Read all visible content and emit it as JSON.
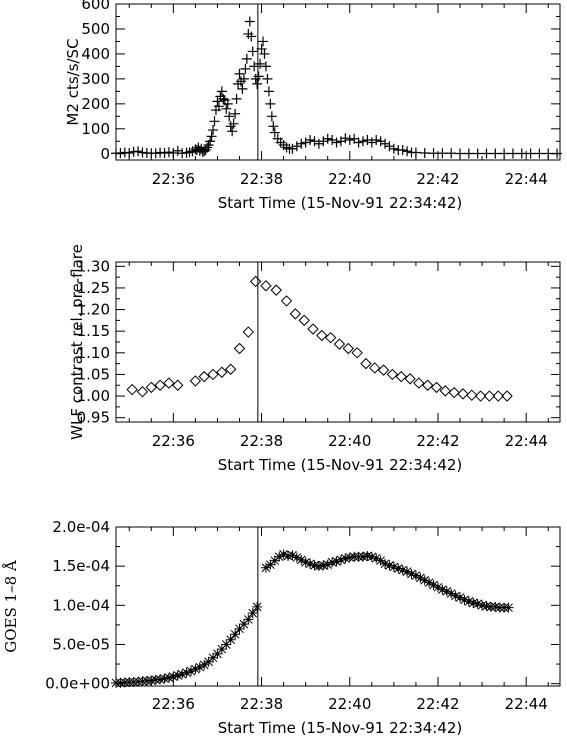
{
  "chart_data": [
    {
      "type": "scatter",
      "marker": "plus",
      "xlabel": "Start Time (15-Nov-91 22:34:42)",
      "ylabel": "M2 cts/s/SC",
      "xlim": [
        0,
        604
      ],
      "ylim": [
        -25,
        600
      ],
      "xticks": [
        {
          "t": 78,
          "label": "22:36"
        },
        {
          "t": 198,
          "label": "22:38"
        },
        {
          "t": 318,
          "label": "22:40"
        },
        {
          "t": 438,
          "label": "22:42"
        },
        {
          "t": 558,
          "label": "22:44"
        }
      ],
      "yticks": [
        {
          "v": 0,
          "label": "0"
        },
        {
          "v": 100,
          "label": "100"
        },
        {
          "v": 200,
          "label": "200"
        },
        {
          "v": 300,
          "label": "300"
        },
        {
          "v": 400,
          "label": "400"
        },
        {
          "v": 500,
          "label": "500"
        },
        {
          "v": 600,
          "label": "600"
        }
      ],
      "vline_t": 193,
      "series": [
        {
          "t": [
            0,
            6,
            12,
            18,
            24,
            30,
            36,
            42,
            48,
            54,
            60,
            66,
            72,
            78,
            84,
            90,
            96,
            100,
            104,
            108,
            110,
            112,
            114,
            116,
            118,
            120,
            122,
            124,
            126,
            128,
            130,
            132,
            134,
            136,
            138,
            140,
            142,
            144,
            146,
            148,
            150,
            152,
            154,
            156,
            158,
            160,
            162,
            164,
            166,
            168,
            170,
            172,
            174,
            176,
            178,
            180,
            182,
            184,
            186,
            188,
            190,
            192,
            194,
            196,
            198,
            200,
            202,
            204,
            206,
            208,
            210,
            212,
            214,
            216,
            220,
            224,
            228,
            232,
            236,
            240,
            246,
            252,
            258,
            264,
            270,
            276,
            282,
            288,
            294,
            300,
            306,
            312,
            318,
            324,
            330,
            336,
            342,
            348,
            354,
            360,
            366,
            372,
            378,
            384,
            390,
            396,
            402,
            408,
            420,
            432,
            444,
            456,
            468,
            480,
            492,
            504,
            516,
            528,
            540,
            552,
            564,
            576,
            588,
            600
          ],
          "y": [
            2,
            3,
            5,
            3,
            8,
            10,
            5,
            3,
            2,
            2,
            5,
            3,
            6,
            3,
            12,
            2,
            4,
            6,
            10,
            18,
            15,
            25,
            12,
            20,
            8,
            10,
            15,
            25,
            35,
            50,
            70,
            95,
            130,
            175,
            210,
            190,
            230,
            250,
            220,
            215,
            180,
            200,
            150,
            110,
            90,
            120,
            160,
            220,
            280,
            320,
            290,
            260,
            300,
            340,
            380,
            480,
            530,
            470,
            410,
            350,
            300,
            280,
            310,
            360,
            420,
            450,
            400,
            350,
            300,
            250,
            200,
            150,
            110,
            85,
            60,
            45,
            35,
            25,
            20,
            20,
            30,
            40,
            45,
            55,
            50,
            40,
            50,
            60,
            55,
            45,
            50,
            62,
            55,
            60,
            45,
            50,
            55,
            45,
            55,
            50,
            40,
            30,
            20,
            15,
            15,
            10,
            5,
            5,
            3,
            2,
            2,
            2,
            1,
            1,
            1,
            1,
            1,
            1,
            1,
            1,
            1,
            1,
            1,
            1
          ]
        }
      ]
    },
    {
      "type": "scatter",
      "marker": "diamond",
      "xlabel": "Start Time (15-Nov-91 22:34:42)",
      "ylabel": "WLF contrast rel. pre-flare",
      "xlim": [
        0,
        604
      ],
      "ylim": [
        0.94,
        1.31
      ],
      "xticks": [
        {
          "t": 78,
          "label": "22:36"
        },
        {
          "t": 198,
          "label": "22:38"
        },
        {
          "t": 318,
          "label": "22:40"
        },
        {
          "t": 438,
          "label": "22:42"
        },
        {
          "t": 558,
          "label": "22:44"
        }
      ],
      "yticks": [
        {
          "v": 0.95,
          "label": "0.95"
        },
        {
          "v": 1.0,
          "label": "1.00"
        },
        {
          "v": 1.05,
          "label": "1.05"
        },
        {
          "v": 1.1,
          "label": "1.10"
        },
        {
          "v": 1.15,
          "label": "1.15"
        },
        {
          "v": 1.2,
          "label": "1.20"
        },
        {
          "v": 1.25,
          "label": "1.25"
        },
        {
          "v": 1.3,
          "label": "1.30"
        }
      ],
      "vline_t": 193,
      "series": [
        {
          "t": [
            22,
            36,
            48,
            60,
            72,
            84,
            108,
            120,
            132,
            144,
            156,
            168,
            180,
            190,
            204,
            218,
            232,
            244,
            256,
            268,
            280,
            292,
            304,
            316,
            328,
            340,
            352,
            364,
            376,
            388,
            400,
            412,
            424,
            436,
            448,
            460,
            472,
            484,
            496,
            508,
            520,
            532
          ],
          "y": [
            1.015,
            1.01,
            1.02,
            1.025,
            1.03,
            1.025,
            1.035,
            1.045,
            1.05,
            1.055,
            1.062,
            1.11,
            1.148,
            1.265,
            1.255,
            1.245,
            1.22,
            1.19,
            1.175,
            1.155,
            1.14,
            1.135,
            1.12,
            1.11,
            1.1,
            1.075,
            1.065,
            1.06,
            1.05,
            1.045,
            1.04,
            1.03,
            1.025,
            1.02,
            1.012,
            1.008,
            1.005,
            1.002,
            1.0,
            1.0,
            1.0,
            1.0
          ]
        }
      ]
    },
    {
      "type": "scatter",
      "marker": "asterisk",
      "xlabel": "Start Time (15-Nov-91 22:34:42)",
      "ylabel": "GOES 1–8 Å",
      "xlim": [
        0,
        604
      ],
      "ylim": [
        -3e-06,
        0.0002
      ],
      "xticks": [
        {
          "t": 78,
          "label": "22:36"
        },
        {
          "t": 198,
          "label": "22:38"
        },
        {
          "t": 318,
          "label": "22:40"
        },
        {
          "t": 438,
          "label": "22:42"
        },
        {
          "t": 558,
          "label": "22:44"
        }
      ],
      "yticks": [
        {
          "v": 0,
          "label": "0.0e+00"
        },
        {
          "v": 5e-05,
          "label": "5.0e-05"
        },
        {
          "v": 0.0001,
          "label": "1.0e-04"
        },
        {
          "v": 0.00015,
          "label": "1.5e-04"
        },
        {
          "v": 0.0002,
          "label": "2.0e-04"
        }
      ],
      "vline_t": 193,
      "series": [
        {
          "t": [
            0,
            6,
            12,
            18,
            24,
            30,
            36,
            42,
            48,
            54,
            60,
            66,
            72,
            78,
            84,
            90,
            96,
            102,
            108,
            114,
            120,
            126,
            132,
            138,
            144,
            150,
            156,
            162,
            168,
            174,
            180,
            186,
            192,
            204,
            210,
            216,
            222,
            228,
            234,
            240,
            246,
            252,
            258,
            264,
            270,
            276,
            282,
            288,
            294,
            300,
            306,
            312,
            318,
            324,
            330,
            336,
            342,
            348,
            354,
            360,
            366,
            372,
            378,
            384,
            390,
            396,
            402,
            408,
            414,
            420,
            426,
            432,
            438,
            444,
            450,
            456,
            462,
            468,
            474,
            480,
            486,
            492,
            498,
            504,
            510,
            516,
            522,
            528,
            534
          ],
          "y": [
            1e-06,
            1e-06,
            1.5e-06,
            2e-06,
            2e-06,
            2.5e-06,
            3e-06,
            3.5e-06,
            4e-06,
            5e-06,
            5.5e-06,
            6.5e-06,
            7.5e-06,
            9e-06,
            1.05e-05,
            1.2e-05,
            1.4e-05,
            1.6e-05,
            1.85e-05,
            2.1e-05,
            2.4e-05,
            2.8e-05,
            3.3e-05,
            3.8e-05,
            4.4e-05,
            5e-05,
            5.6e-05,
            6.3e-05,
            7e-05,
            7.6e-05,
            8.2e-05,
            9e-05,
            9.8e-05,
            0.000148,
            0.000152,
            0.000157,
            0.000162,
            0.000165,
            0.000163,
            0.000164,
            0.000161,
            0.000158,
            0.000155,
            0.000153,
            0.000151,
            0.00015,
            0.000151,
            0.000152,
            0.000155,
            0.000156,
            0.000158,
            0.00016,
            0.000161,
            0.000162,
            0.000162,
            0.000162,
            0.000163,
            0.000162,
            0.00016,
            0.000157,
            0.000153,
            0.000151,
            0.000149,
            0.000147,
            0.000145,
            0.000143,
            0.00014,
            0.000138,
            0.000135,
            0.000132,
            0.000129,
            0.000126,
            0.000123,
            0.00012,
            0.000118,
            0.000115,
            0.000112,
            0.00011,
            0.000107,
            0.000105,
            0.000103,
            0.000102,
            0.0001,
            9.9e-05,
            9.8e-05,
            9.8e-05,
            9.7e-05,
            9.7e-05,
            9.7e-05
          ]
        }
      ]
    }
  ]
}
